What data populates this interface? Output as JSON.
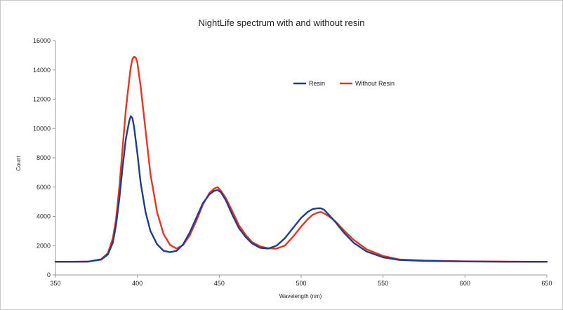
{
  "chart_data": {
    "type": "line",
    "title": "NightLife spectrum with and without resin",
    "xlabel": "Wavelength (nm)",
    "ylabel": "Count",
    "xlim": [
      350,
      650
    ],
    "ylim": [
      0,
      16000
    ],
    "xticks": [
      350,
      400,
      450,
      500,
      550,
      600,
      650
    ],
    "yticks": [
      0,
      2000,
      4000,
      6000,
      8000,
      10000,
      12000,
      14000,
      16000
    ],
    "grid": false,
    "legend_position": "top-center",
    "series": [
      {
        "name": "Resin",
        "color": "#1f3e8c",
        "x": [
          350,
          360,
          370,
          378,
          382,
          385,
          387,
          389,
          391,
          393,
          395,
          396,
          397,
          398,
          400,
          402,
          405,
          408,
          412,
          416,
          420,
          424,
          428,
          432,
          436,
          440,
          444,
          447,
          449,
          451,
          454,
          458,
          462,
          466,
          470,
          475,
          480,
          485,
          490,
          495,
          500,
          504,
          507,
          510,
          512,
          514,
          517,
          521,
          526,
          532,
          540,
          550,
          560,
          575,
          600,
          625,
          650
        ],
        "y": [
          900,
          900,
          910,
          1050,
          1400,
          2200,
          3400,
          5200,
          7400,
          9300,
          10500,
          10850,
          10700,
          10100,
          8300,
          6300,
          4300,
          3000,
          2100,
          1650,
          1550,
          1650,
          2100,
          2900,
          3900,
          4900,
          5500,
          5750,
          5800,
          5650,
          5100,
          4100,
          3200,
          2600,
          2150,
          1850,
          1800,
          2000,
          2500,
          3200,
          3900,
          4300,
          4500,
          4550,
          4550,
          4450,
          4100,
          3600,
          2900,
          2200,
          1600,
          1200,
          1020,
          960,
          920,
          900,
          900
        ]
      },
      {
        "name": "Without Resin",
        "color": "#e8351e",
        "x": [
          350,
          360,
          370,
          378,
          382,
          385,
          387,
          389,
          391,
          393,
          395,
          396,
          397,
          398,
          399,
          400,
          402,
          405,
          408,
          412,
          416,
          420,
          424,
          428,
          432,
          436,
          440,
          444,
          447,
          449,
          451,
          454,
          458,
          462,
          466,
          470,
          475,
          480,
          485,
          490,
          495,
          500,
          504,
          507,
          510,
          512,
          514,
          517,
          521,
          526,
          532,
          540,
          550,
          560,
          575,
          600,
          625,
          650
        ],
        "y": [
          900,
          900,
          910,
          1080,
          1500,
          2500,
          3800,
          6000,
          8700,
          11300,
          13300,
          14200,
          14750,
          14900,
          14850,
          14500,
          12900,
          9900,
          6900,
          4300,
          2800,
          2050,
          1800,
          2050,
          2700,
          3700,
          4800,
          5600,
          5900,
          6000,
          5750,
          5250,
          4350,
          3400,
          2750,
          2250,
          1950,
          1820,
          1800,
          2000,
          2600,
          3300,
          3800,
          4100,
          4250,
          4300,
          4200,
          4000,
          3650,
          3050,
          2400,
          1750,
          1300,
          1060,
          980,
          930,
          910,
          900
        ]
      }
    ]
  }
}
